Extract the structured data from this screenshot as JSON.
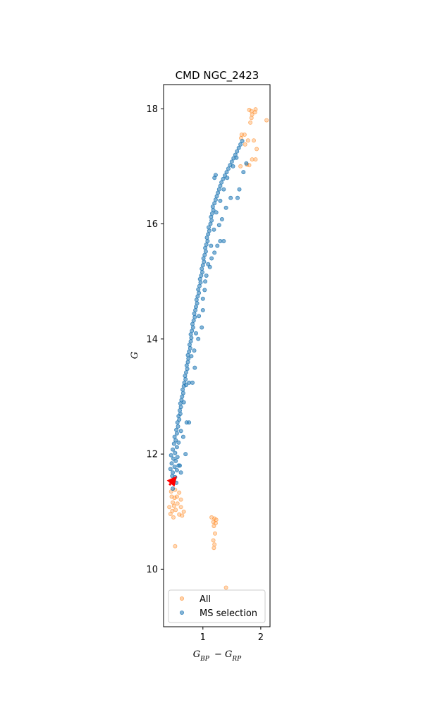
{
  "chart_data": {
    "type": "scatter",
    "title": "CMD NGC_2423",
    "xlabel": "G_{BP} - G_{RP}",
    "ylabel": "G",
    "xlim": [
      0.32,
      2.16
    ],
    "ylim": [
      9.0,
      18.42
    ],
    "y_inverted": false,
    "xticks": [
      1,
      2
    ],
    "yticks": [
      10,
      12,
      14,
      16,
      18
    ],
    "grid": false,
    "legend_position": "lower-right",
    "colors": {
      "All": "#ff7f0e",
      "MS selection": "#1f77b4",
      "arrow": "#ff0000"
    },
    "series": [
      {
        "name": "All",
        "points": [
          [
            1.8,
            17.98
          ],
          [
            1.84,
            17.96
          ],
          [
            1.9,
            17.94
          ],
          [
            1.91,
            17.99
          ],
          [
            1.85,
            17.9
          ],
          [
            1.84,
            17.84
          ],
          [
            1.82,
            17.76
          ],
          [
            2.1,
            17.8
          ],
          [
            1.67,
            17.55
          ],
          [
            1.72,
            17.55
          ],
          [
            1.66,
            17.49
          ],
          [
            1.78,
            17.45
          ],
          [
            1.88,
            17.45
          ],
          [
            1.93,
            17.3
          ],
          [
            1.73,
            17.38
          ],
          [
            1.85,
            17.12
          ],
          [
            1.91,
            17.12
          ],
          [
            1.76,
            17.03
          ],
          [
            1.8,
            17.02
          ],
          [
            1.65,
            17.0
          ],
          [
            0.45,
            11.35
          ],
          [
            0.52,
            11.38
          ],
          [
            0.59,
            11.33
          ],
          [
            0.46,
            11.26
          ],
          [
            0.51,
            11.24
          ],
          [
            0.55,
            11.26
          ],
          [
            0.62,
            11.21
          ],
          [
            0.48,
            11.16
          ],
          [
            0.56,
            11.14
          ],
          [
            0.42,
            11.08
          ],
          [
            0.5,
            11.1
          ],
          [
            0.62,
            11.08
          ],
          [
            0.47,
            11.01
          ],
          [
            0.53,
            11.03
          ],
          [
            0.67,
            11.0
          ],
          [
            0.44,
            10.96
          ],
          [
            0.59,
            10.95
          ],
          [
            0.64,
            10.93
          ],
          [
            0.49,
            10.9
          ],
          [
            0.52,
            10.4
          ],
          [
            1.15,
            10.9
          ],
          [
            1.2,
            10.88
          ],
          [
            1.23,
            10.86
          ],
          [
            1.18,
            10.82
          ],
          [
            1.22,
            10.8
          ],
          [
            1.19,
            10.75
          ],
          [
            1.21,
            10.62
          ],
          [
            1.18,
            10.5
          ],
          [
            1.2,
            10.43
          ],
          [
            1.19,
            10.37
          ],
          [
            1.4,
            9.68
          ]
        ]
      },
      {
        "name": "MS selection",
        "points": [
          [
            0.5,
            11.55
          ],
          [
            0.47,
            11.62
          ],
          [
            0.52,
            11.6
          ],
          [
            0.48,
            11.68
          ],
          [
            0.55,
            11.72
          ],
          [
            0.44,
            11.74
          ],
          [
            0.51,
            11.78
          ],
          [
            0.58,
            11.8
          ],
          [
            0.46,
            11.84
          ],
          [
            0.53,
            11.88
          ],
          [
            0.49,
            11.92
          ],
          [
            0.56,
            11.95
          ],
          [
            0.45,
            11.98
          ],
          [
            0.52,
            12.02
          ],
          [
            0.48,
            12.08
          ],
          [
            0.55,
            12.12
          ],
          [
            0.5,
            12.18
          ],
          [
            0.53,
            12.24
          ],
          [
            0.51,
            12.3
          ],
          [
            0.55,
            12.36
          ],
          [
            0.54,
            12.42
          ],
          [
            0.57,
            12.48
          ],
          [
            0.56,
            12.55
          ],
          [
            0.59,
            12.6
          ],
          [
            0.58,
            12.66
          ],
          [
            0.61,
            12.7
          ],
          [
            0.6,
            12.76
          ],
          [
            0.62,
            12.82
          ],
          [
            0.61,
            12.88
          ],
          [
            0.63,
            12.94
          ],
          [
            0.64,
            13.0
          ],
          [
            0.66,
            13.06
          ],
          [
            0.65,
            13.12
          ],
          [
            0.67,
            13.18
          ],
          [
            0.68,
            13.24
          ],
          [
            0.7,
            13.3
          ],
          [
            0.69,
            13.36
          ],
          [
            0.71,
            13.42
          ],
          [
            0.73,
            13.48
          ],
          [
            0.72,
            13.54
          ],
          [
            0.74,
            13.6
          ],
          [
            0.75,
            13.66
          ],
          [
            0.74,
            13.72
          ],
          [
            0.76,
            13.78
          ],
          [
            0.78,
            13.84
          ],
          [
            0.77,
            13.9
          ],
          [
            0.79,
            13.96
          ],
          [
            0.8,
            14.02
          ],
          [
            0.79,
            14.08
          ],
          [
            0.81,
            14.14
          ],
          [
            0.83,
            14.2
          ],
          [
            0.82,
            14.26
          ],
          [
            0.84,
            14.32
          ],
          [
            0.86,
            14.38
          ],
          [
            0.85,
            14.44
          ],
          [
            0.87,
            14.5
          ],
          [
            0.88,
            14.56
          ],
          [
            0.9,
            14.62
          ],
          [
            0.89,
            14.68
          ],
          [
            0.91,
            14.74
          ],
          [
            0.93,
            14.8
          ],
          [
            0.92,
            14.86
          ],
          [
            0.94,
            14.92
          ],
          [
            0.96,
            14.98
          ],
          [
            0.95,
            15.04
          ],
          [
            0.97,
            15.1
          ],
          [
            0.99,
            15.16
          ],
          [
            0.98,
            15.22
          ],
          [
            1.0,
            15.28
          ],
          [
            1.02,
            15.34
          ],
          [
            1.01,
            15.4
          ],
          [
            1.03,
            15.46
          ],
          [
            1.05,
            15.52
          ],
          [
            1.04,
            15.58
          ],
          [
            1.06,
            15.64
          ],
          [
            1.08,
            15.7
          ],
          [
            1.07,
            15.76
          ],
          [
            1.09,
            15.82
          ],
          [
            1.11,
            15.88
          ],
          [
            1.1,
            15.94
          ],
          [
            1.13,
            16.0
          ],
          [
            1.15,
            16.06
          ],
          [
            1.14,
            16.12
          ],
          [
            1.16,
            16.18
          ],
          [
            1.18,
            16.24
          ],
          [
            1.17,
            16.3
          ],
          [
            1.2,
            16.36
          ],
          [
            1.22,
            16.42
          ],
          [
            1.24,
            16.48
          ],
          [
            1.26,
            16.54
          ],
          [
            1.28,
            16.6
          ],
          [
            1.3,
            16.66
          ],
          [
            1.32,
            16.72
          ],
          [
            1.35,
            16.78
          ],
          [
            1.38,
            16.84
          ],
          [
            1.41,
            16.9
          ],
          [
            1.44,
            16.96
          ],
          [
            1.47,
            17.02
          ],
          [
            1.5,
            17.08
          ],
          [
            1.53,
            17.14
          ],
          [
            1.56,
            17.2
          ],
          [
            1.59,
            17.26
          ],
          [
            1.62,
            17.32
          ],
          [
            1.65,
            17.38
          ],
          [
            1.68,
            17.44
          ],
          [
            0.62,
            11.68
          ],
          [
            0.6,
            11.8
          ],
          [
            0.7,
            12.0
          ],
          [
            0.66,
            12.3
          ],
          [
            0.72,
            12.55
          ],
          [
            0.76,
            12.55
          ],
          [
            0.82,
            13.24
          ],
          [
            0.76,
            13.24
          ],
          [
            0.86,
            13.5
          ],
          [
            0.85,
            13.8
          ],
          [
            0.92,
            14.0
          ],
          [
            0.98,
            14.2
          ],
          [
            1.0,
            14.5
          ],
          [
            1.03,
            14.85
          ],
          [
            1.06,
            15.1
          ],
          [
            1.12,
            15.25
          ],
          [
            1.15,
            15.4
          ],
          [
            1.2,
            15.5
          ],
          [
            1.25,
            15.62
          ],
          [
            1.3,
            15.7
          ],
          [
            1.36,
            15.7
          ],
          [
            1.28,
            15.98
          ],
          [
            1.33,
            16.08
          ],
          [
            1.4,
            16.28
          ],
          [
            1.48,
            16.45
          ],
          [
            1.6,
            16.45
          ],
          [
            1.63,
            16.6
          ],
          [
            1.7,
            16.9
          ],
          [
            1.75,
            17.05
          ],
          [
            1.2,
            16.8
          ],
          [
            1.22,
            16.85
          ],
          [
            0.54,
            11.5
          ],
          [
            0.48,
            11.4
          ],
          [
            0.58,
            12.2
          ],
          [
            0.62,
            12.4
          ],
          [
            0.67,
            12.9
          ],
          [
            0.71,
            13.2
          ],
          [
            0.8,
            13.7
          ],
          [
            0.88,
            14.1
          ],
          [
            0.93,
            14.4
          ],
          [
            1.0,
            14.7
          ],
          [
            1.04,
            15.0
          ],
          [
            1.09,
            15.3
          ],
          [
            1.14,
            15.62
          ],
          [
            1.19,
            15.9
          ],
          [
            1.23,
            16.2
          ],
          [
            1.3,
            16.4
          ],
          [
            1.36,
            16.6
          ],
          [
            1.42,
            16.8
          ],
          [
            1.52,
            17.0
          ],
          [
            1.58,
            17.15
          ]
        ]
      }
    ],
    "annotation_arrow": {
      "tail": [
        0.42,
        11.46
      ],
      "head": [
        0.55,
        11.62
      ]
    },
    "legend": {
      "entries": [
        "All",
        "MS selection"
      ]
    }
  }
}
